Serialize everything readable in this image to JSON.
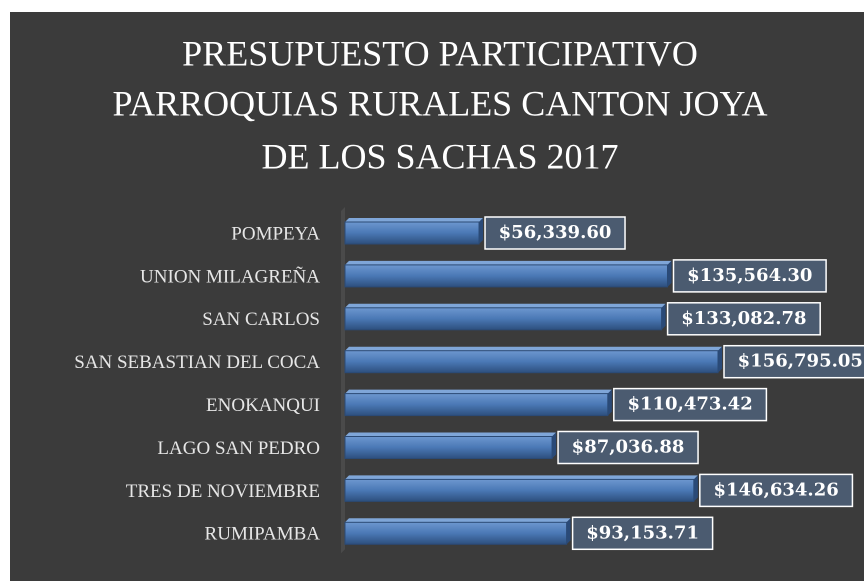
{
  "chart_data": {
    "type": "bar",
    "orientation": "horizontal",
    "title": [
      "PRESUPUESTO PARTICIPATIVO",
      "PARROQUIAS RURALES CANTON JOYA",
      "DE LOS SACHAS 2017"
    ],
    "categories": [
      "POMPEYA",
      "UNION MILAGREÑA",
      "SAN CARLOS",
      "SAN SEBASTIAN DEL COCA",
      "ENOKANQUI",
      "LAGO SAN PEDRO",
      "TRES DE NOVIEMBRE",
      "RUMIPAMBA"
    ],
    "values": [
      56339.6,
      135564.3,
      133082.78,
      156795.05,
      110473.42,
      87036.88,
      146634.26,
      93153.71
    ],
    "value_labels": [
      "$56,339.60",
      "$135,564.30",
      "$133,082.78",
      "$156,795.05",
      "$110,473.42",
      "$87,036.88",
      "$146,634.26",
      "$93,153.71"
    ],
    "color": "#4f81bd"
  }
}
